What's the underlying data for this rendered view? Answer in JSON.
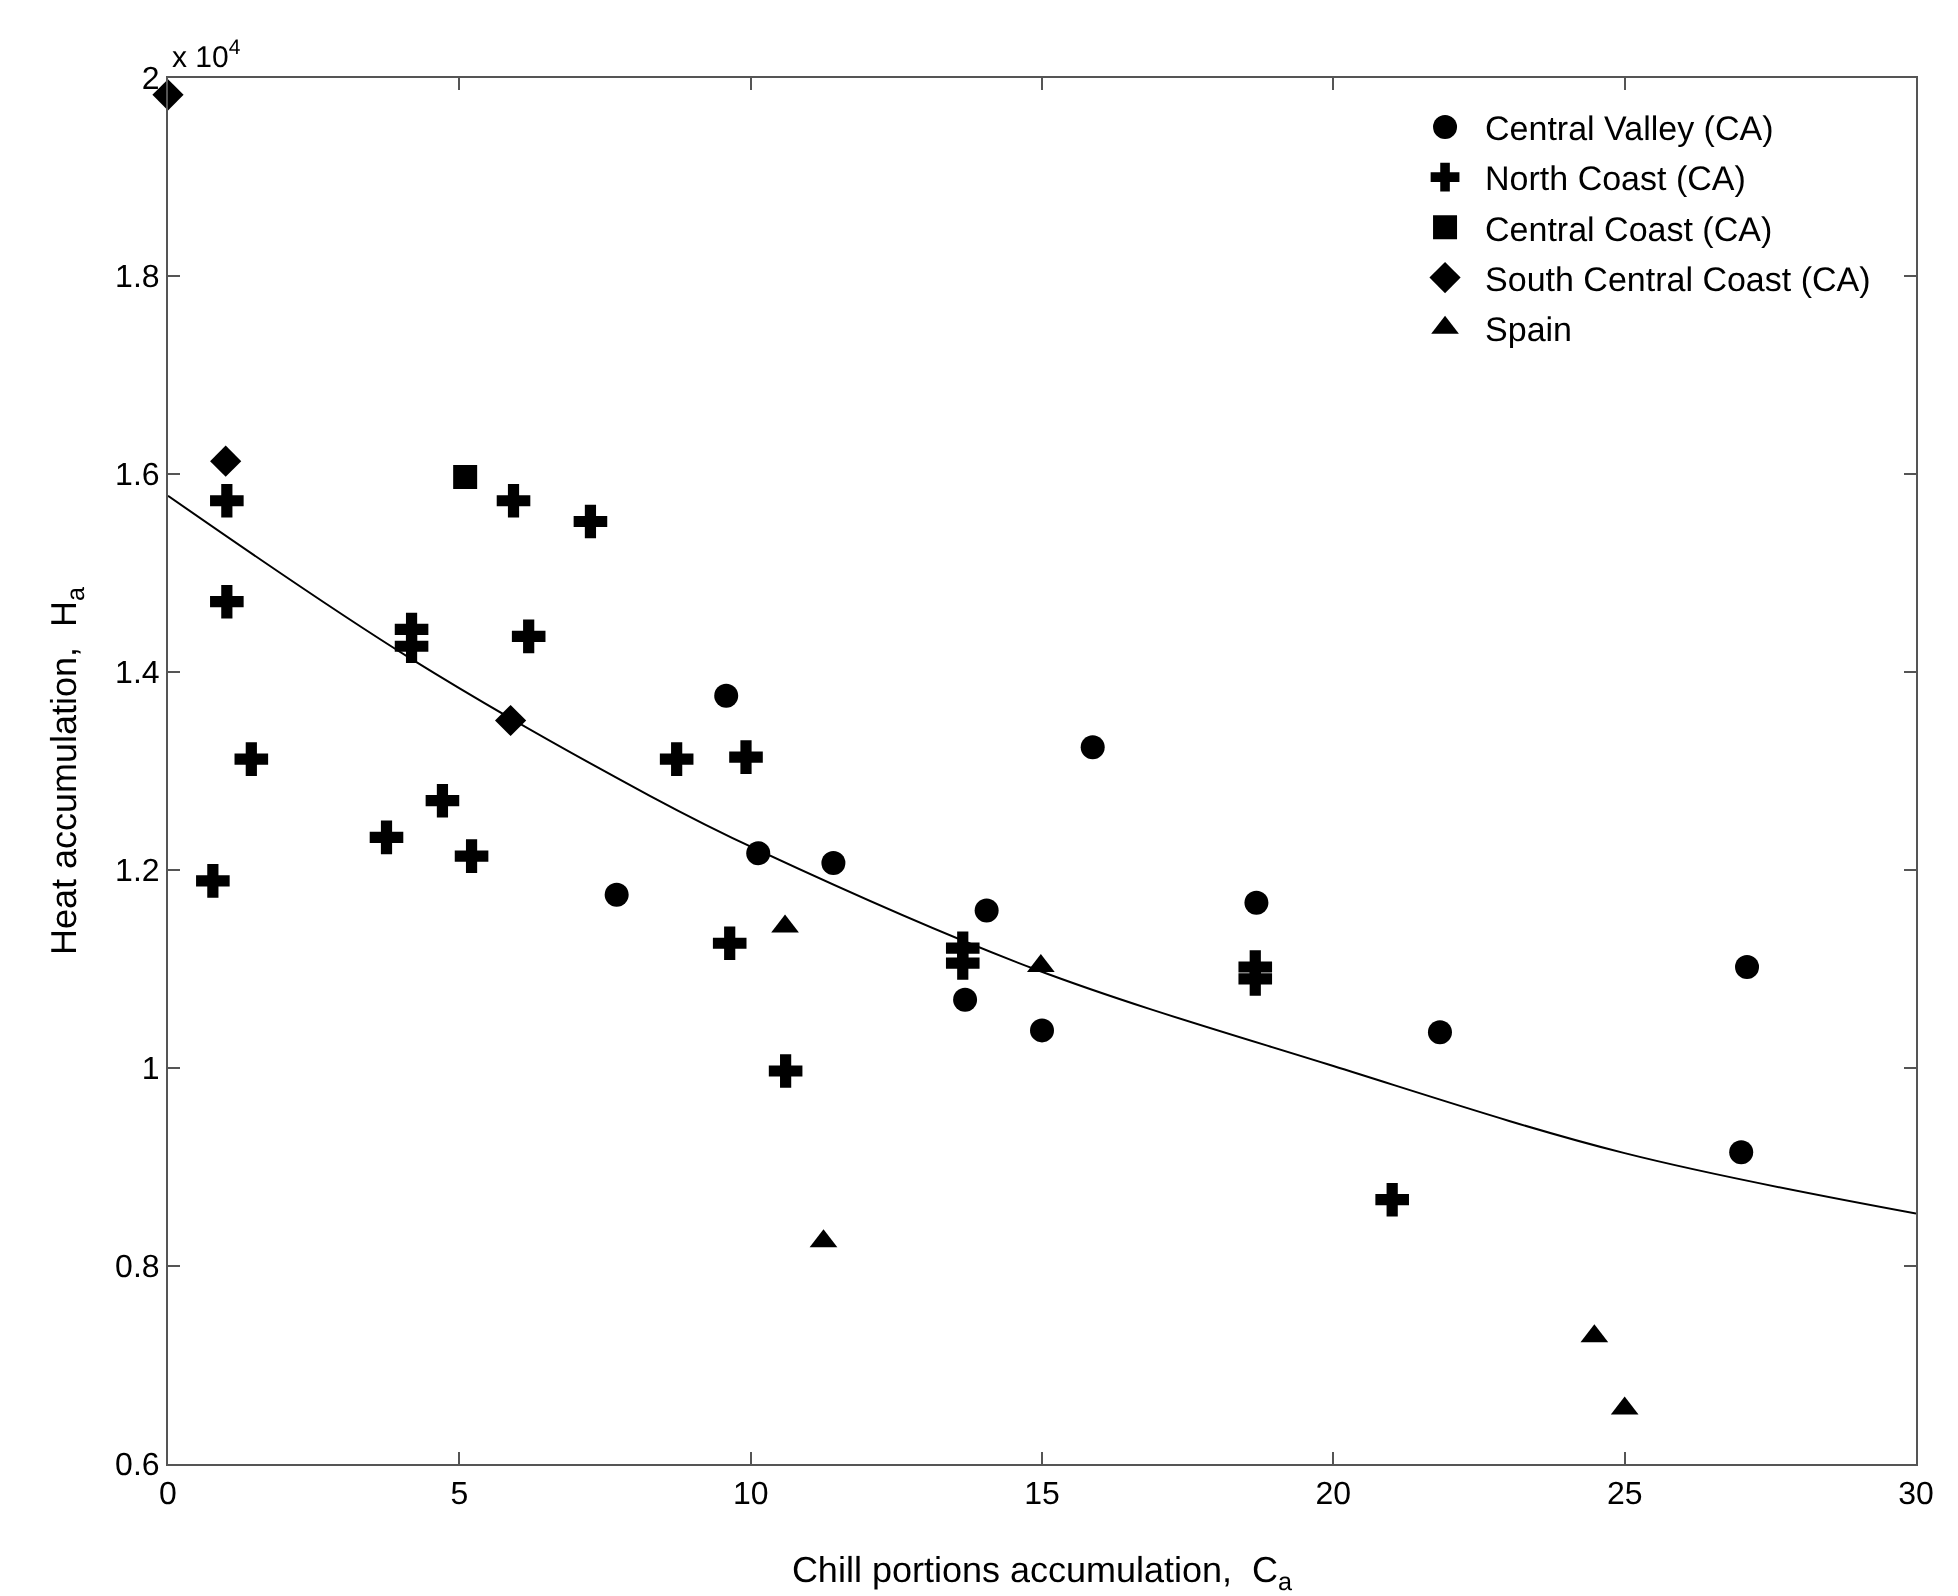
{
  "chart_data": {
    "type": "scatter",
    "xlabel": "Chill portions accumulation,  C$_{a}$",
    "ylabel": "Heat accumulation,  H$_{a}$",
    "annotations": [
      "x 10$^{4}$"
    ],
    "xlim": [
      0,
      30
    ],
    "xticks": [
      0,
      5,
      10,
      15,
      20,
      25,
      30
    ],
    "ylim": [
      0.6,
      2
    ],
    "yticks": [
      0.6,
      0.8,
      1,
      1.2,
      1.4,
      1.6,
      1.8,
      2
    ],
    "grid": false,
    "legend": "top right",
    "series": [
      {
        "name": "Central Valley (CA)",
        "color": "#000000",
        "marker": "circle",
        "x": [
          9.58,
          7.7,
          10.13,
          11.42,
          14.05,
          13.68,
          15.87,
          18.68,
          15.0,
          27.1,
          21.83,
          27.0
        ],
        "values": [
          1.376,
          1.175,
          1.217,
          1.207,
          1.159,
          1.069,
          1.324,
          1.167,
          1.038,
          1.102,
          1.036,
          0.915
        ]
      },
      {
        "name": "North Coast (CA)",
        "color": "#000000",
        "marker": "cross",
        "x": [
          1.01,
          5.93,
          7.25,
          1.01,
          4.18,
          4.18,
          6.19,
          1.43,
          8.73,
          9.92,
          4.71,
          3.75,
          5.21,
          0.77,
          9.64,
          13.64,
          13.64,
          10.6,
          18.66,
          18.66,
          21.01
        ],
        "values": [
          1.573,
          1.573,
          1.552,
          1.471,
          1.443,
          1.426,
          1.436,
          1.312,
          1.312,
          1.314,
          1.27,
          1.233,
          1.214,
          1.189,
          1.126,
          1.121,
          1.106,
          0.997,
          1.102,
          1.09,
          0.867
        ]
      },
      {
        "name": "Central Coast (CA)",
        "color": "#000000",
        "marker": "square",
        "x": [
          5.1
        ],
        "values": [
          1.597
        ]
      },
      {
        "name": "South Central Coast (CA)",
        "color": "#000000",
        "marker": "diamond",
        "x": [
          0,
          0.99,
          5.88
        ],
        "values": [
          1.983,
          1.613,
          1.351
        ]
      },
      {
        "name": "Spain",
        "color": "#000000",
        "marker": "triangle",
        "x": [
          10.59,
          14.98,
          11.25,
          24.48,
          25.0
        ],
        "values": [
          1.143,
          1.103,
          0.825,
          0.729,
          0.656
        ]
      },
      {
        "type": "line",
        "color": "#000000",
        "marker": "none",
        "line_style": "solid",
        "x": [
          0,
          4.18,
          8.27,
          10.13,
          14.87,
          20,
          25,
          30
        ],
        "values": [
          1.578,
          1.413,
          1.275,
          1.22,
          1.1,
          1.002,
          0.914,
          0.853
        ]
      }
    ]
  }
}
